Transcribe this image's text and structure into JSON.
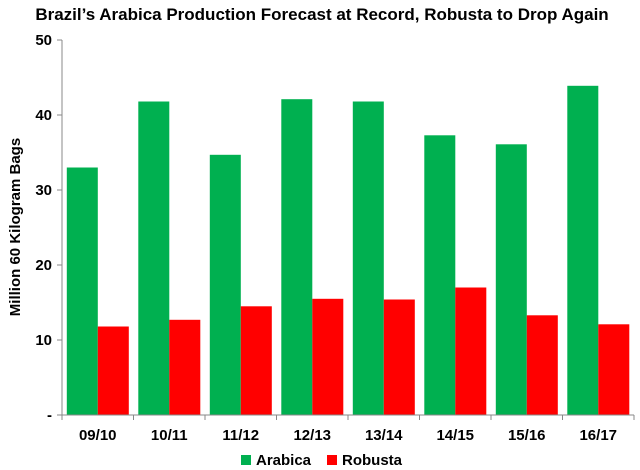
{
  "chart_data": {
    "type": "bar",
    "title": "Brazil’s Arabica Production Forecast at Record, Robusta to Drop Again",
    "xlabel": "",
    "ylabel": "Million 60 Kilogram Bags",
    "ylim": [
      0,
      50
    ],
    "yticks": [
      0,
      10,
      20,
      30,
      40,
      50
    ],
    "ytick_labels": [
      "-",
      "10",
      "20",
      "30",
      "40",
      "50"
    ],
    "categories": [
      "09/10",
      "10/11",
      "11/12",
      "12/13",
      "13/14",
      "14/15",
      "15/16",
      "16/17"
    ],
    "series": [
      {
        "name": "Arabica",
        "color": "#00b050",
        "values": [
          33.0,
          41.8,
          34.7,
          42.1,
          41.8,
          37.3,
          36.1,
          43.9
        ]
      },
      {
        "name": "Robusta",
        "color": "#ff0000",
        "values": [
          11.8,
          12.7,
          14.5,
          15.5,
          15.4,
          17.0,
          13.3,
          12.1
        ]
      }
    ],
    "legend": {
      "position": "bottom"
    },
    "grid": false
  }
}
